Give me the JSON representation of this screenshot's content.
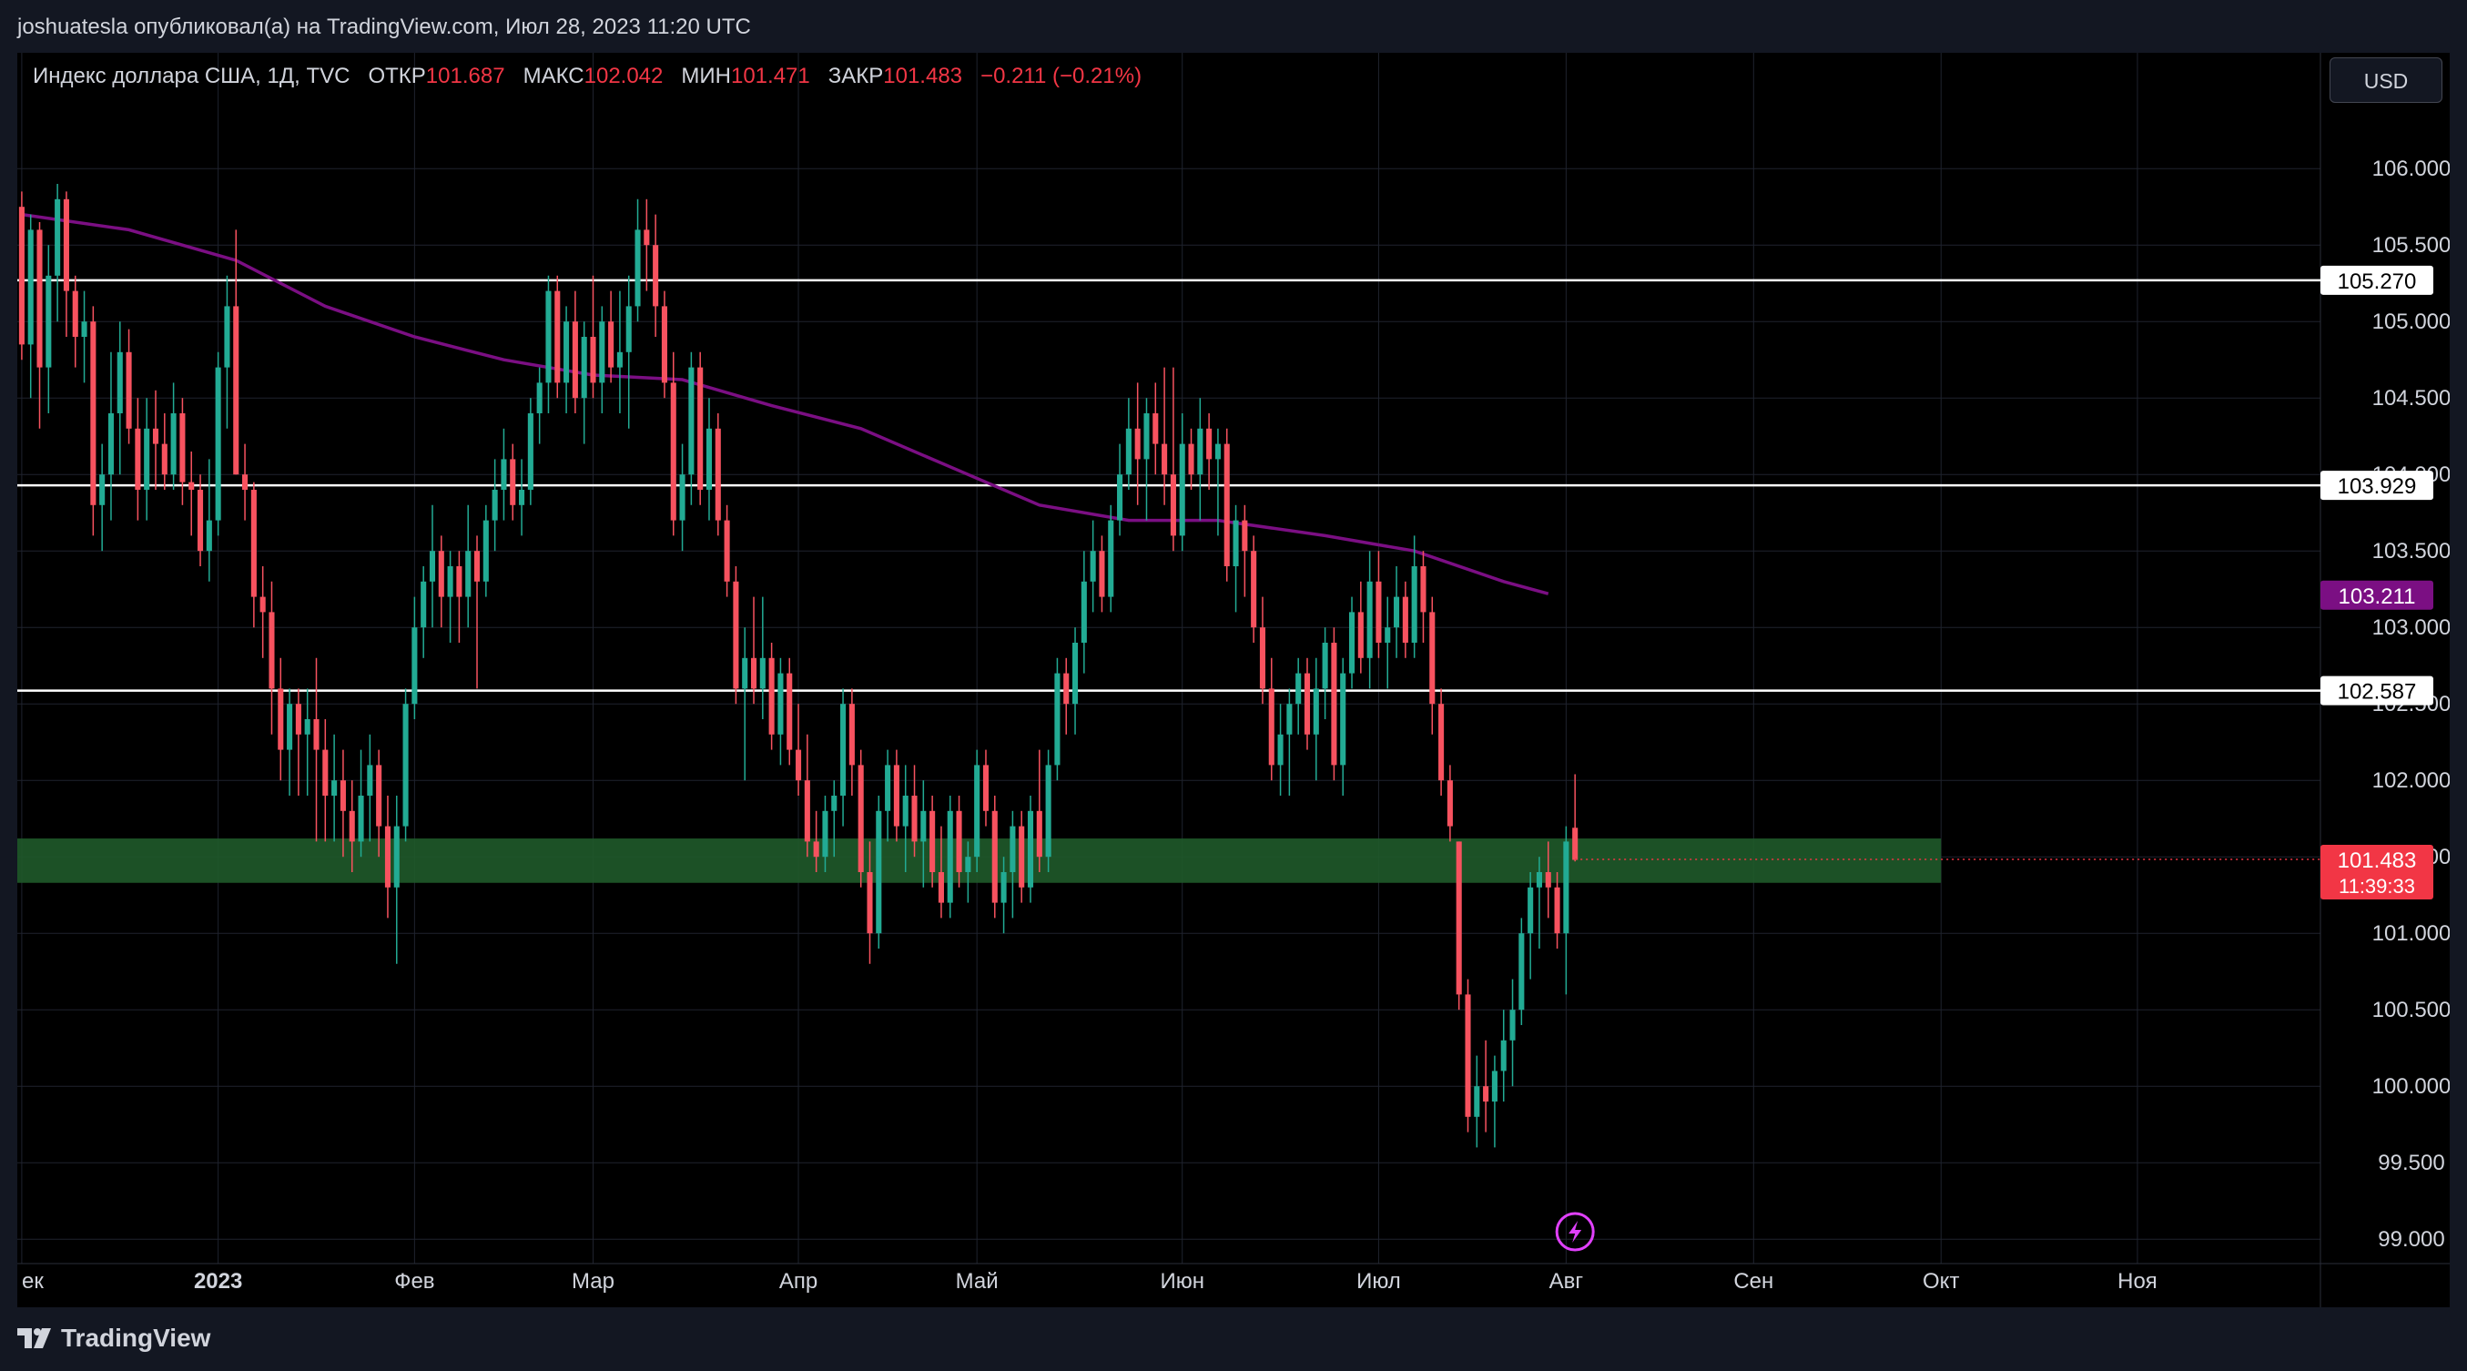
{
  "header": {
    "publisher_line": "joshuatesla опубликовал(а) на TradingView.com, Июл 28, 2023 11:20 UTC"
  },
  "legend": {
    "symbol": "Индекс доллара США, 1Д, TVC",
    "open_label": "ОТКР",
    "open_value": "101.687",
    "high_label": "МАКС",
    "high_value": "102.042",
    "low_label": "МИН",
    "low_value": "101.471",
    "close_label": "ЗАКР",
    "close_value": "101.483",
    "change": "−0.211 (−0.21%)"
  },
  "currency_button": "USD",
  "footer": {
    "brand": "TradingView"
  },
  "colors": {
    "up": "#22ab94",
    "down": "#f7525f",
    "ma": "#7b0f83",
    "zone": "#1f5a2a",
    "level_line": "#ffffff",
    "price_tag": "#f23645",
    "background": "#000000",
    "grid": "#1f232e"
  },
  "icons": {
    "flash": "flash-icon",
    "logo": "tradingview-logo-icon"
  },
  "chart_data": {
    "type": "candlestick",
    "y_range": [
      98.9,
      106.4
    ],
    "y_ticks": [
      "106.000",
      "105.500",
      "105.000",
      "104.500",
      "104.000",
      "103.500",
      "103.000",
      "102.500",
      "102.000",
      "101.500",
      "101.000",
      "100.500",
      "100.000",
      "99.500",
      "99.000"
    ],
    "x_labels": [
      {
        "text": "ек",
        "pos": 0
      },
      {
        "text": "2023",
        "pos": 22,
        "bold": true
      },
      {
        "text": "Фев",
        "pos": 44
      },
      {
        "text": "Мар",
        "pos": 64
      },
      {
        "text": "Апр",
        "pos": 87
      },
      {
        "text": "Май",
        "pos": 107
      },
      {
        "text": "Июн",
        "pos": 130
      },
      {
        "text": "Июл",
        "pos": 152
      },
      {
        "text": "Авг",
        "pos": 173
      },
      {
        "text": "Сен",
        "pos": 194
      },
      {
        "text": "Окт",
        "pos": 215
      },
      {
        "text": "Ноя",
        "pos": 237
      }
    ],
    "x_total_slots": 258,
    "candles": [
      [
        105.75,
        105.85,
        104.75,
        104.85
      ],
      [
        104.85,
        105.7,
        104.5,
        105.6
      ],
      [
        105.6,
        105.65,
        104.3,
        104.7
      ],
      [
        104.7,
        105.5,
        104.4,
        105.3
      ],
      [
        105.3,
        105.9,
        105.0,
        105.8
      ],
      [
        105.8,
        105.85,
        104.9,
        105.2
      ],
      [
        105.2,
        105.3,
        104.7,
        104.9
      ],
      [
        104.9,
        105.2,
        104.6,
        105.0
      ],
      [
        105.0,
        105.1,
        103.6,
        103.8
      ],
      [
        103.8,
        104.2,
        103.5,
        104.0
      ],
      [
        104.0,
        104.8,
        103.7,
        104.4
      ],
      [
        104.4,
        105.0,
        104.0,
        104.8
      ],
      [
        104.8,
        104.95,
        104.2,
        104.3
      ],
      [
        104.3,
        104.5,
        103.7,
        103.9
      ],
      [
        103.9,
        104.5,
        103.7,
        104.3
      ],
      [
        104.3,
        104.55,
        103.9,
        104.2
      ],
      [
        104.2,
        104.4,
        103.9,
        104.0
      ],
      [
        104.0,
        104.6,
        103.9,
        104.4
      ],
      [
        104.4,
        104.5,
        103.8,
        103.95
      ],
      [
        103.95,
        104.15,
        103.6,
        103.9
      ],
      [
        103.9,
        104.0,
        103.4,
        103.5
      ],
      [
        103.5,
        104.1,
        103.3,
        103.7
      ],
      [
        103.7,
        104.8,
        103.6,
        104.7
      ],
      [
        104.7,
        105.3,
        104.3,
        105.1
      ],
      [
        105.1,
        105.6,
        104.0,
        104.0
      ],
      [
        104.0,
        104.2,
        103.7,
        103.9
      ],
      [
        103.9,
        103.95,
        103.0,
        103.2
      ],
      [
        103.2,
        103.4,
        102.8,
        103.1
      ],
      [
        103.1,
        103.3,
        102.3,
        102.6
      ],
      [
        102.6,
        102.8,
        102.0,
        102.2
      ],
      [
        102.2,
        102.6,
        101.9,
        102.5
      ],
      [
        102.5,
        102.6,
        101.9,
        102.3
      ],
      [
        102.3,
        102.6,
        101.9,
        102.4
      ],
      [
        102.4,
        102.8,
        101.6,
        102.2
      ],
      [
        102.2,
        102.4,
        101.6,
        101.9
      ],
      [
        101.9,
        102.3,
        101.6,
        102.0
      ],
      [
        102.0,
        102.2,
        101.5,
        101.8
      ],
      [
        101.8,
        102.0,
        101.4,
        101.6
      ],
      [
        101.6,
        102.2,
        101.5,
        101.9
      ],
      [
        101.9,
        102.3,
        101.6,
        102.1
      ],
      [
        102.1,
        102.2,
        101.5,
        101.7
      ],
      [
        101.7,
        101.9,
        101.1,
        101.3
      ],
      [
        101.3,
        101.9,
        100.8,
        101.7
      ],
      [
        101.7,
        102.6,
        101.6,
        102.5
      ],
      [
        102.5,
        103.2,
        102.4,
        103.0
      ],
      [
        103.0,
        103.4,
        102.8,
        103.3
      ],
      [
        103.3,
        103.8,
        103.0,
        103.5
      ],
      [
        103.5,
        103.6,
        103.0,
        103.2
      ],
      [
        103.2,
        103.5,
        102.9,
        103.4
      ],
      [
        103.4,
        103.5,
        102.9,
        103.2
      ],
      [
        103.2,
        103.8,
        103.0,
        103.5
      ],
      [
        103.5,
        103.6,
        102.6,
        103.3
      ],
      [
        103.3,
        103.8,
        103.2,
        103.7
      ],
      [
        103.7,
        104.1,
        103.5,
        103.9
      ],
      [
        103.9,
        104.3,
        103.7,
        104.1
      ],
      [
        104.1,
        104.2,
        103.7,
        103.8
      ],
      [
        103.8,
        104.1,
        103.6,
        103.9
      ],
      [
        103.9,
        104.5,
        103.8,
        104.4
      ],
      [
        104.4,
        104.7,
        104.2,
        104.6
      ],
      [
        104.6,
        105.3,
        104.4,
        105.2
      ],
      [
        105.2,
        105.3,
        104.5,
        104.6
      ],
      [
        104.6,
        105.1,
        104.4,
        105.0
      ],
      [
        105.0,
        105.2,
        104.4,
        104.5
      ],
      [
        104.5,
        105.0,
        104.2,
        104.9
      ],
      [
        104.9,
        105.3,
        104.5,
        104.6
      ],
      [
        104.6,
        105.1,
        104.4,
        105.0
      ],
      [
        105.0,
        105.2,
        104.6,
        104.7
      ],
      [
        104.7,
        105.2,
        104.4,
        104.8
      ],
      [
        104.8,
        105.3,
        104.3,
        105.1
      ],
      [
        105.1,
        105.8,
        105.0,
        105.6
      ],
      [
        105.6,
        105.8,
        105.2,
        105.5
      ],
      [
        105.5,
        105.7,
        104.9,
        105.1
      ],
      [
        105.1,
        105.2,
        104.5,
        104.6
      ],
      [
        104.6,
        104.8,
        103.6,
        103.7
      ],
      [
        103.7,
        104.2,
        103.5,
        104.0
      ],
      [
        104.0,
        104.8,
        103.8,
        104.7
      ],
      [
        104.7,
        104.8,
        103.8,
        103.9
      ],
      [
        103.9,
        104.5,
        103.7,
        104.3
      ],
      [
        104.3,
        104.4,
        103.6,
        103.7
      ],
      [
        103.7,
        103.8,
        103.2,
        103.3
      ],
      [
        103.3,
        103.4,
        102.5,
        102.6
      ],
      [
        102.6,
        103.0,
        102.0,
        102.8
      ],
      [
        102.8,
        103.2,
        102.5,
        102.6
      ],
      [
        102.6,
        103.2,
        102.4,
        102.8
      ],
      [
        102.8,
        102.9,
        102.2,
        102.3
      ],
      [
        102.3,
        102.8,
        102.1,
        102.7
      ],
      [
        102.7,
        102.8,
        102.1,
        102.2
      ],
      [
        102.2,
        102.5,
        101.9,
        102.0
      ],
      [
        102.0,
        102.3,
        101.5,
        101.6
      ],
      [
        101.6,
        101.8,
        101.4,
        101.5
      ],
      [
        101.5,
        101.9,
        101.4,
        101.8
      ],
      [
        101.8,
        102.0,
        101.5,
        101.9
      ],
      [
        101.9,
        102.6,
        101.7,
        102.5
      ],
      [
        102.5,
        102.6,
        101.9,
        102.1
      ],
      [
        102.1,
        102.2,
        101.3,
        101.4
      ],
      [
        101.4,
        101.6,
        100.8,
        101.0
      ],
      [
        101.0,
        101.9,
        100.9,
        101.8
      ],
      [
        101.8,
        102.2,
        101.6,
        102.1
      ],
      [
        102.1,
        102.2,
        101.6,
        101.7
      ],
      [
        101.7,
        102.1,
        101.4,
        101.9
      ],
      [
        101.9,
        102.1,
        101.5,
        101.6
      ],
      [
        101.6,
        102.0,
        101.3,
        101.8
      ],
      [
        101.8,
        101.9,
        101.3,
        101.4
      ],
      [
        101.4,
        101.7,
        101.1,
        101.2
      ],
      [
        101.2,
        101.9,
        101.1,
        101.8
      ],
      [
        101.8,
        101.9,
        101.3,
        101.4
      ],
      [
        101.4,
        101.6,
        101.2,
        101.5
      ],
      [
        101.5,
        102.2,
        101.4,
        102.1
      ],
      [
        102.1,
        102.2,
        101.7,
        101.8
      ],
      [
        101.8,
        101.9,
        101.1,
        101.2
      ],
      [
        101.2,
        101.5,
        101.0,
        101.4
      ],
      [
        101.4,
        101.8,
        101.1,
        101.7
      ],
      [
        101.7,
        101.8,
        101.2,
        101.3
      ],
      [
        101.3,
        101.9,
        101.2,
        101.8
      ],
      [
        101.8,
        102.2,
        101.4,
        101.5
      ],
      [
        101.5,
        102.2,
        101.4,
        102.1
      ],
      [
        102.1,
        102.8,
        102.0,
        102.7
      ],
      [
        102.7,
        102.8,
        102.3,
        102.5
      ],
      [
        102.5,
        103.0,
        102.3,
        102.9
      ],
      [
        102.9,
        103.5,
        102.7,
        103.3
      ],
      [
        103.3,
        103.7,
        103.1,
        103.5
      ],
      [
        103.5,
        103.6,
        103.1,
        103.2
      ],
      [
        103.2,
        103.8,
        103.1,
        103.7
      ],
      [
        103.7,
        104.2,
        103.6,
        104.0
      ],
      [
        104.0,
        104.5,
        103.9,
        104.3
      ],
      [
        104.3,
        104.6,
        103.8,
        104.1
      ],
      [
        104.1,
        104.5,
        103.7,
        104.4
      ],
      [
        104.4,
        104.6,
        104.0,
        104.2
      ],
      [
        104.2,
        104.7,
        103.8,
        104.0
      ],
      [
        104.0,
        104.7,
        103.5,
        103.6
      ],
      [
        103.6,
        104.4,
        103.5,
        104.2
      ],
      [
        104.2,
        104.3,
        103.9,
        104.0
      ],
      [
        104.0,
        104.5,
        103.7,
        104.3
      ],
      [
        104.3,
        104.4,
        103.9,
        104.1
      ],
      [
        104.1,
        104.3,
        103.6,
        104.2
      ],
      [
        104.2,
        104.3,
        103.3,
        103.4
      ],
      [
        103.4,
        103.8,
        103.1,
        103.7
      ],
      [
        103.7,
        103.8,
        103.2,
        103.5
      ],
      [
        103.5,
        103.6,
        102.9,
        103.0
      ],
      [
        103.0,
        103.2,
        102.5,
        102.6
      ],
      [
        102.6,
        102.8,
        102.0,
        102.1
      ],
      [
        102.1,
        102.5,
        101.9,
        102.3
      ],
      [
        102.3,
        102.6,
        101.9,
        102.5
      ],
      [
        102.5,
        102.8,
        102.3,
        102.7
      ],
      [
        102.7,
        102.8,
        102.2,
        102.3
      ],
      [
        102.3,
        102.8,
        102.0,
        102.6
      ],
      [
        102.6,
        103.0,
        102.4,
        102.9
      ],
      [
        102.9,
        103.0,
        102.0,
        102.1
      ],
      [
        102.1,
        102.8,
        101.9,
        102.7
      ],
      [
        102.7,
        103.2,
        102.6,
        103.1
      ],
      [
        103.1,
        103.3,
        102.7,
        102.8
      ],
      [
        102.8,
        103.5,
        102.6,
        103.3
      ],
      [
        103.3,
        103.5,
        102.8,
        102.9
      ],
      [
        102.9,
        103.2,
        102.6,
        103.0
      ],
      [
        103.0,
        103.4,
        102.8,
        103.2
      ],
      [
        103.2,
        103.3,
        102.8,
        102.9
      ],
      [
        102.9,
        103.6,
        102.8,
        103.4
      ],
      [
        103.4,
        103.5,
        102.9,
        103.1
      ],
      [
        103.1,
        103.2,
        102.3,
        102.5
      ],
      [
        102.5,
        102.6,
        101.9,
        102.0
      ],
      [
        102.0,
        102.1,
        101.6,
        101.7
      ],
      [
        101.6,
        101.6,
        100.5,
        100.6
      ],
      [
        100.6,
        100.7,
        99.7,
        99.8
      ],
      [
        99.8,
        100.2,
        99.6,
        100.0
      ],
      [
        100.0,
        100.3,
        99.7,
        99.9
      ],
      [
        99.9,
        100.2,
        99.6,
        100.1
      ],
      [
        100.1,
        100.5,
        99.9,
        100.3
      ],
      [
        100.3,
        100.7,
        100.0,
        100.5
      ],
      [
        100.5,
        101.1,
        100.4,
        101.0
      ],
      [
        101.0,
        101.4,
        100.7,
        101.3
      ],
      [
        101.3,
        101.5,
        100.9,
        101.4
      ],
      [
        101.4,
        101.6,
        101.1,
        101.3
      ],
      [
        101.3,
        101.4,
        100.9,
        101.0
      ],
      [
        101.0,
        101.7,
        100.6,
        101.6
      ],
      [
        101.69,
        102.04,
        101.47,
        101.48
      ]
    ],
    "ma200": [
      [
        0,
        105.7
      ],
      [
        12,
        105.6
      ],
      [
        24,
        105.4
      ],
      [
        34,
        105.1
      ],
      [
        44,
        104.9
      ],
      [
        54,
        104.75
      ],
      [
        64,
        104.65
      ],
      [
        74,
        104.62
      ],
      [
        84,
        104.45
      ],
      [
        94,
        104.3
      ],
      [
        104,
        104.05
      ],
      [
        114,
        103.8
      ],
      [
        124,
        103.7
      ],
      [
        134,
        103.7
      ],
      [
        146,
        103.6
      ],
      [
        156,
        103.5
      ],
      [
        166,
        103.3
      ],
      [
        171,
        103.22
      ]
    ],
    "horizontal_levels": [
      {
        "value": 105.27,
        "label": "105.270"
      },
      {
        "value": 103.929,
        "label": "103.929"
      },
      {
        "value": 102.587,
        "label": "102.587"
      }
    ],
    "zone": {
      "from": 101.33,
      "to": 101.62,
      "end_slot": 215
    },
    "last_price": {
      "value": 101.483,
      "label": "101.483",
      "timer": "11:39:33"
    },
    "ma_label": {
      "value": 103.211,
      "label": "103.211"
    }
  }
}
